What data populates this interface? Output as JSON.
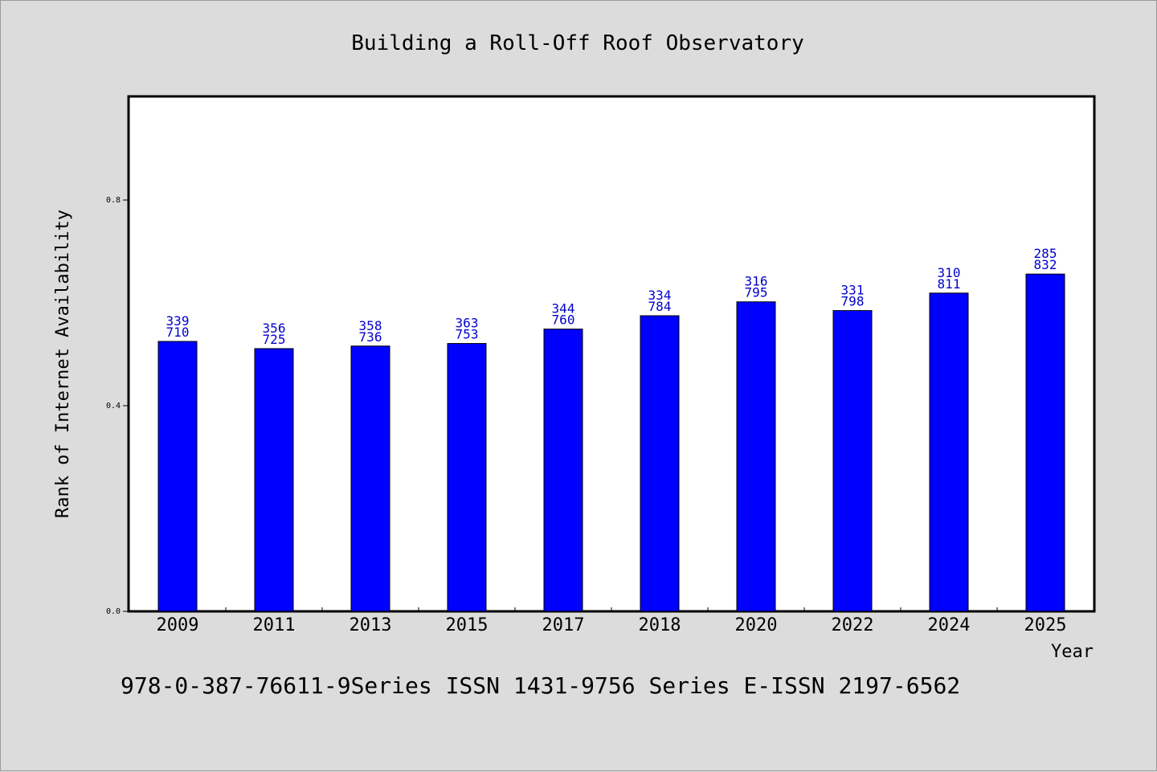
{
  "chart_data": {
    "type": "bar",
    "title": "Building a Roll-Off Roof Observatory",
    "xlabel": "Year",
    "ylabel": "Rank of Internet Availability",
    "categories": [
      "2009",
      "2011",
      "2013",
      "2015",
      "2017",
      "2018",
      "2020",
      "2022",
      "2024",
      "2025"
    ],
    "values": [
      0.525,
      0.511,
      0.516,
      0.521,
      0.549,
      0.575,
      0.602,
      0.585,
      0.619,
      0.656
    ],
    "label_top": [
      "339",
      "356",
      "358",
      "363",
      "344",
      "334",
      "316",
      "331",
      "310",
      "285"
    ],
    "label_bottom": [
      "710",
      "725",
      "736",
      "753",
      "760",
      "784",
      "795",
      "798",
      "811",
      "832"
    ],
    "ylim": [
      0,
      1.0
    ],
    "yticks": [
      "0.0",
      "0.4",
      "0.8"
    ],
    "grid": false,
    "bar_color": "#0000ff",
    "label_color": "#0000cc"
  },
  "footer": "978-0-387-76611-9Series ISSN 1431-9756 Series E-ISSN 2197-6562"
}
